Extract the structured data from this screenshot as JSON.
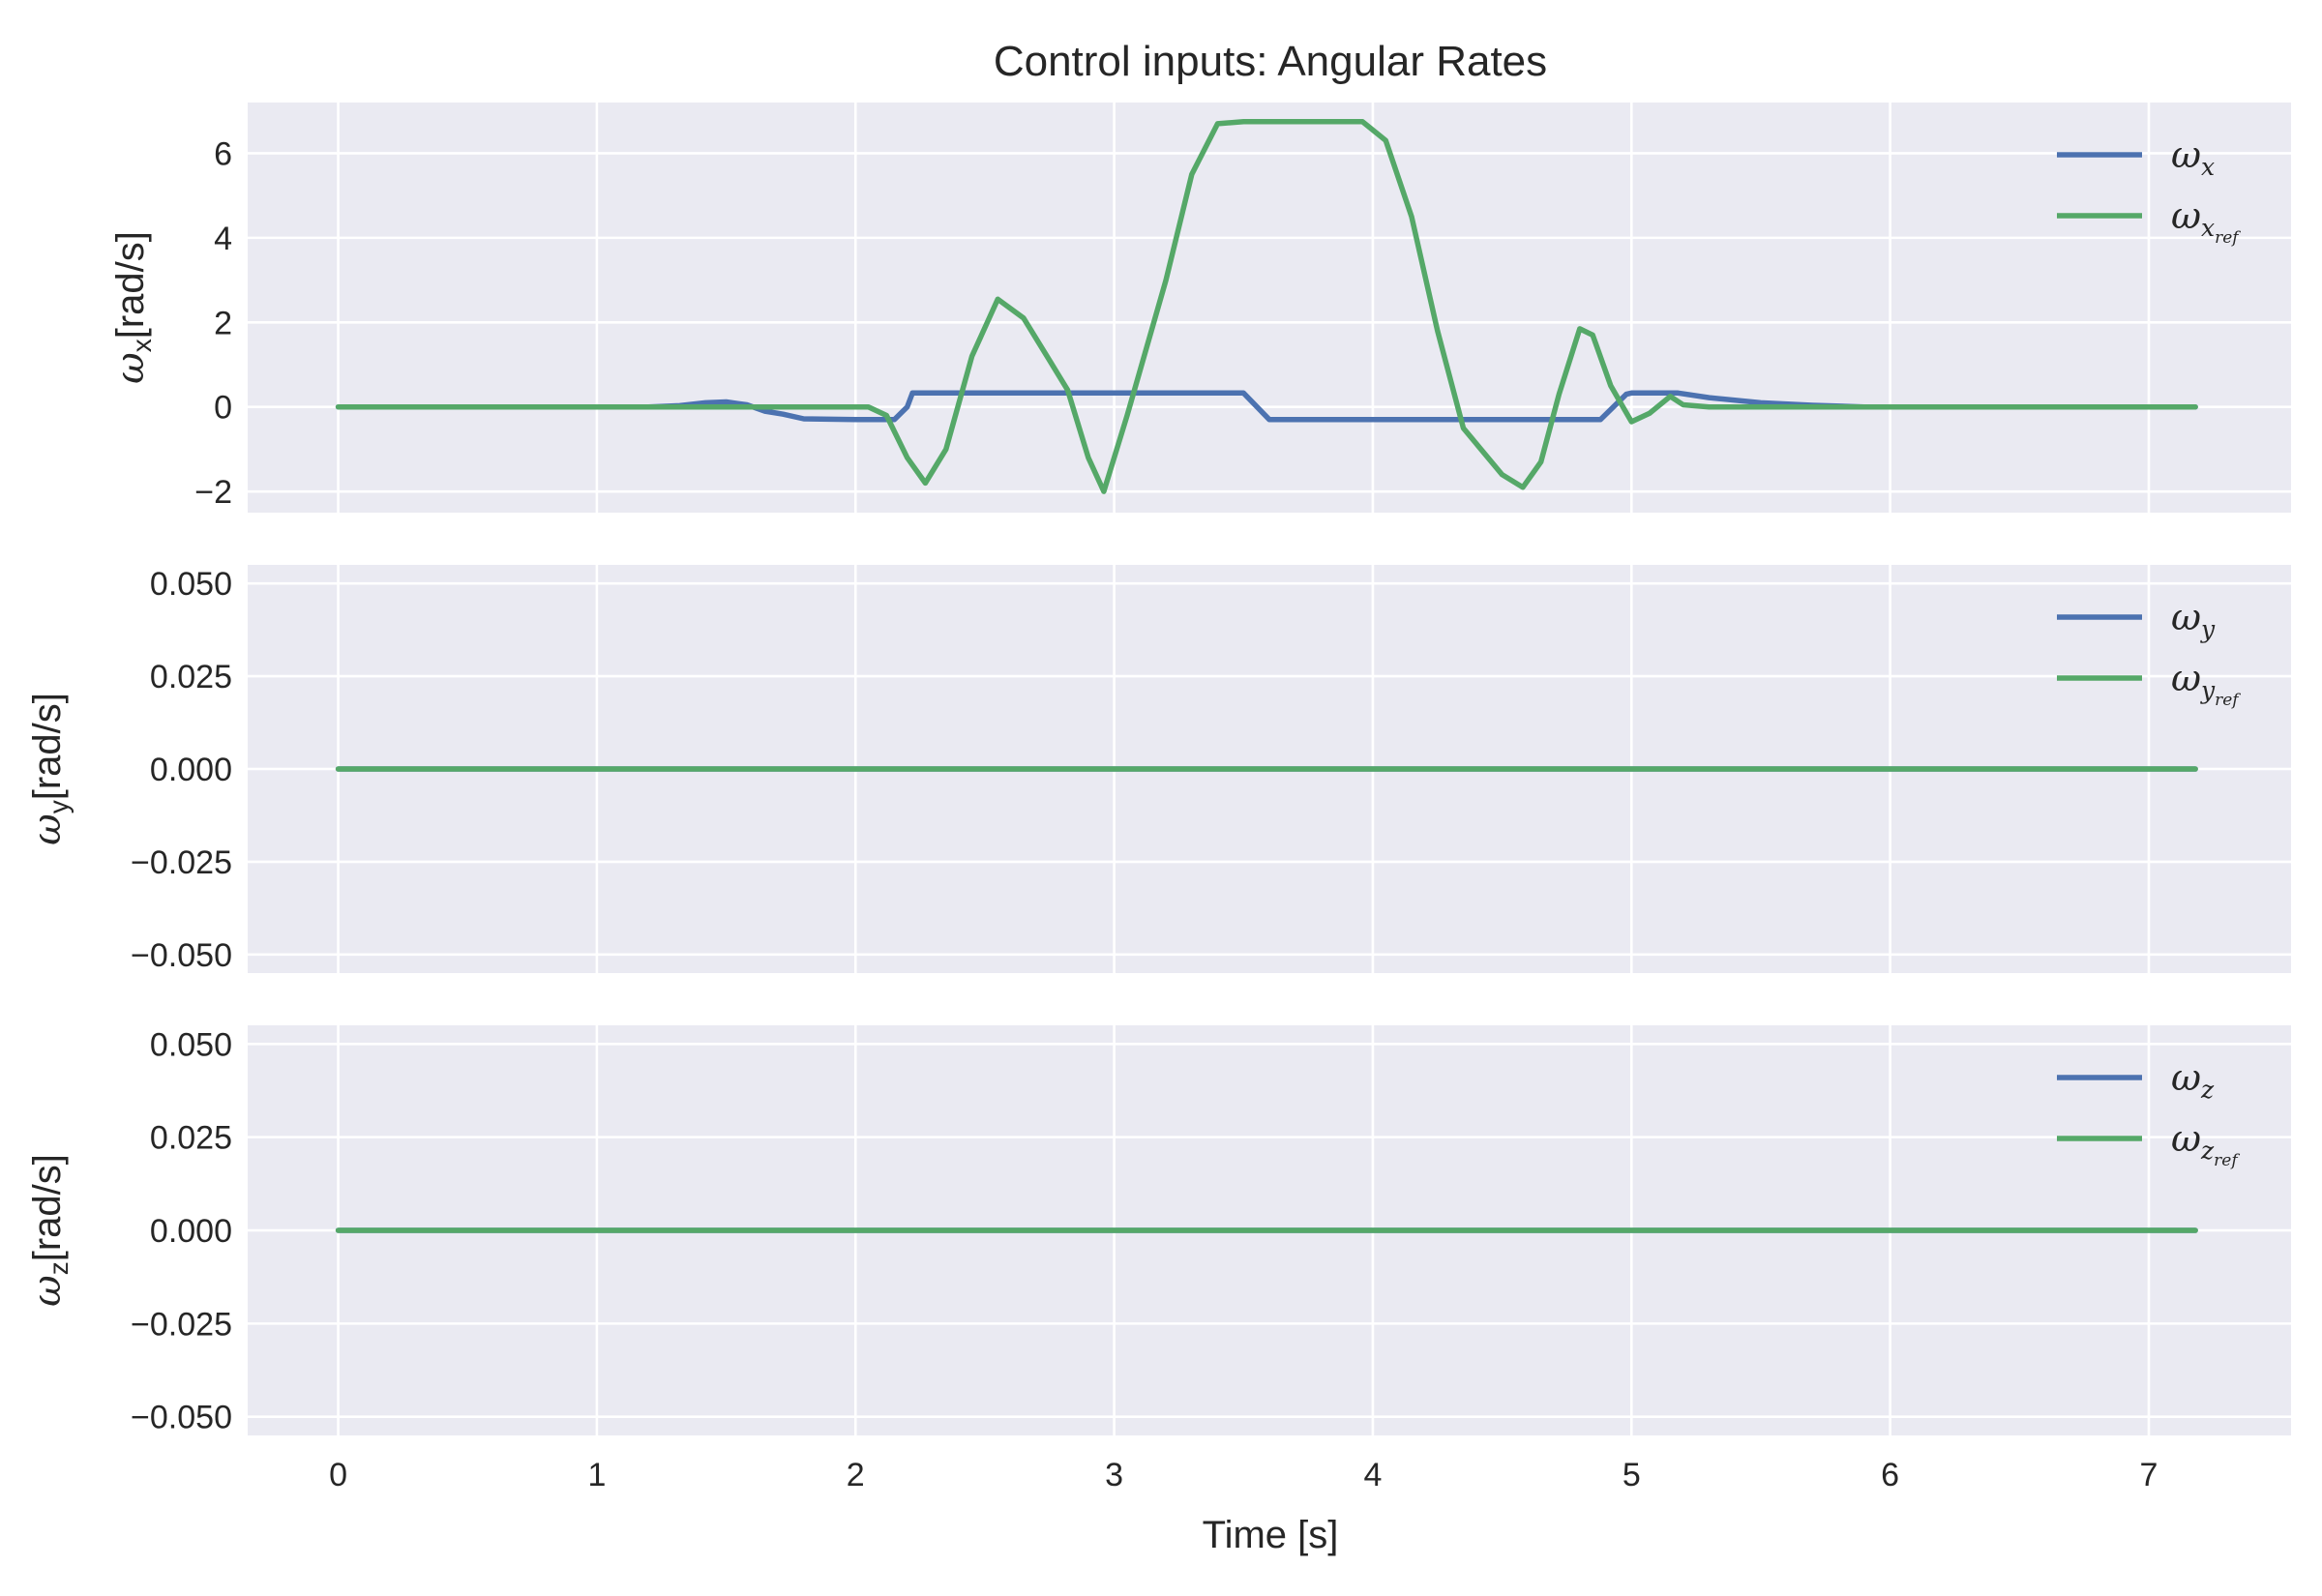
{
  "chart_data": {
    "type": "line",
    "title": "Control inputs: Angular Rates",
    "xlabel": "Time [s]",
    "xlim": [
      -0.35,
      7.55
    ],
    "xticks": [
      0,
      1,
      2,
      3,
      4,
      5,
      6,
      7
    ],
    "colors": {
      "measured": "#4C72B0",
      "reference": "#55A868"
    },
    "legend_position": "top-right",
    "grid": true,
    "subplots": [
      {
        "ylabel_symbol": "ω",
        "ylabel_sub": "x",
        "ylabel_unit": "[rad/s]",
        "ylim": [
          -2.5,
          7.2
        ],
        "yticks": [
          -2,
          0,
          2,
          4,
          6
        ],
        "ytick_labels": [
          "−2",
          "0",
          "2",
          "4",
          "6"
        ],
        "series": [
          {
            "name": "ω",
            "name_sub": "x",
            "name_subsub": "",
            "role": "measured",
            "x": [
              0,
              1.2,
              1.32,
              1.42,
              1.5,
              1.58,
              1.65,
              1.72,
              1.8,
              2.0,
              2.15,
              2.2,
              2.22,
              3.5,
              3.6,
              3.62,
              4.88,
              4.98,
              5.0,
              5.18,
              5.3,
              5.5,
              5.7,
              5.9,
              7.18
            ],
            "y": [
              0,
              0,
              0.03,
              0.1,
              0.12,
              0.05,
              -0.1,
              -0.17,
              -0.28,
              -0.3,
              -0.3,
              0,
              0.33,
              0.33,
              -0.3,
              -0.3,
              -0.3,
              0.3,
              0.33,
              0.33,
              0.22,
              0.1,
              0.04,
              0,
              0
            ]
          },
          {
            "name": "ω",
            "name_sub": "x",
            "name_subsub": "ref",
            "role": "reference",
            "x": [
              0,
              1.55,
              2.05,
              2.12,
              2.2,
              2.27,
              2.35,
              2.45,
              2.55,
              2.65,
              2.75,
              2.82,
              2.9,
              2.96,
              3.05,
              3.2,
              3.3,
              3.4,
              3.5,
              3.96,
              4.05,
              4.15,
              4.25,
              4.35,
              4.5,
              4.58,
              4.65,
              4.72,
              4.8,
              4.85,
              4.92,
              5.0,
              5.07,
              5.15,
              5.2,
              5.3,
              5.5,
              7.18
            ],
            "y": [
              0,
              0,
              0,
              -0.2,
              -1.2,
              -1.8,
              -1.0,
              1.2,
              2.55,
              2.1,
              1.1,
              0.4,
              -1.2,
              -2.0,
              -0.2,
              3.0,
              5.5,
              6.7,
              6.75,
              6.75,
              6.3,
              4.5,
              1.8,
              -0.5,
              -1.6,
              -1.9,
              -1.3,
              0.3,
              1.85,
              1.7,
              0.5,
              -0.35,
              -0.15,
              0.25,
              0.05,
              0,
              0,
              0
            ]
          }
        ]
      },
      {
        "ylabel_symbol": "ω",
        "ylabel_sub": "y",
        "ylabel_unit": "[rad/s]",
        "ylim": [
          -0.055,
          0.055
        ],
        "yticks": [
          -0.05,
          -0.025,
          0,
          0.025,
          0.05
        ],
        "ytick_labels": [
          "−0.050",
          "−0.025",
          "0.000",
          "0.025",
          "0.050"
        ],
        "series": [
          {
            "name": "ω",
            "name_sub": "y",
            "name_subsub": "",
            "role": "measured",
            "x": [
              0,
              7.18
            ],
            "y": [
              0,
              0
            ]
          },
          {
            "name": "ω",
            "name_sub": "y",
            "name_subsub": "ref",
            "role": "reference",
            "x": [
              0,
              7.18
            ],
            "y": [
              0,
              0
            ]
          }
        ]
      },
      {
        "ylabel_symbol": "ω",
        "ylabel_sub": "z",
        "ylabel_unit": "[rad/s]",
        "ylim": [
          -0.055,
          0.055
        ],
        "yticks": [
          -0.05,
          -0.025,
          0,
          0.025,
          0.05
        ],
        "ytick_labels": [
          "−0.050",
          "−0.025",
          "0.000",
          "0.025",
          "0.050"
        ],
        "series": [
          {
            "name": "ω",
            "name_sub": "z",
            "name_subsub": "",
            "role": "measured",
            "x": [
              0,
              7.18
            ],
            "y": [
              0,
              0
            ]
          },
          {
            "name": "ω",
            "name_sub": "z",
            "name_subsub": "ref",
            "role": "reference",
            "x": [
              0,
              7.18
            ],
            "y": [
              0,
              0
            ]
          }
        ]
      }
    ]
  }
}
